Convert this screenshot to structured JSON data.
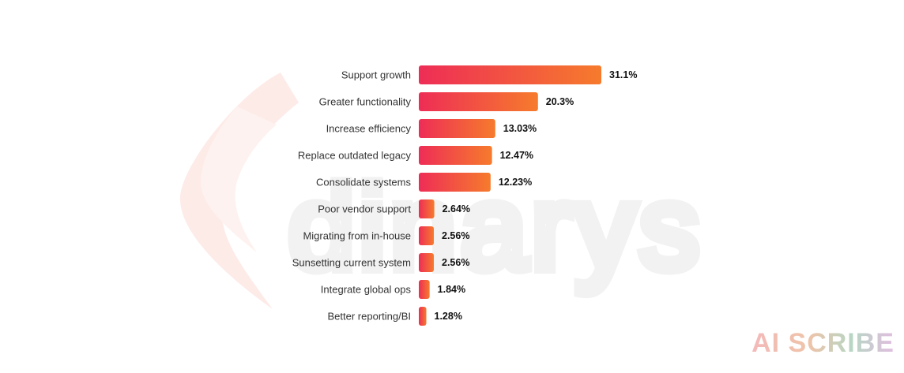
{
  "chart_data": {
    "type": "bar",
    "orientation": "horizontal",
    "categories": [
      "Support growth",
      "Greater functionality",
      "Increase efficiency",
      "Replace outdated legacy",
      "Consolidate systems",
      "Poor vendor support",
      "Migrating from in-house",
      "Sunsetting current system",
      "Integrate global ops",
      "Better reporting/BI"
    ],
    "values": [
      31.1,
      20.3,
      13.03,
      12.47,
      12.23,
      2.64,
      2.56,
      2.56,
      1.84,
      1.28
    ],
    "value_labels": [
      "31.1%",
      "20.3%",
      "13.03%",
      "12.47%",
      "12.23%",
      "2.64%",
      "2.56%",
      "2.56%",
      "1.84%",
      "1.28%"
    ],
    "title": "",
    "xlabel": "",
    "ylabel": "",
    "xlim": [
      0,
      31.1
    ],
    "grid": false,
    "legend": "none",
    "colors": {
      "bar_start": "#ee2d56",
      "bar_end": "#f67b2c",
      "label": "#333333",
      "value": "#111111"
    }
  },
  "watermark": {
    "brand_text": "dinarys",
    "badge_text": "AI SCRIBE"
  }
}
